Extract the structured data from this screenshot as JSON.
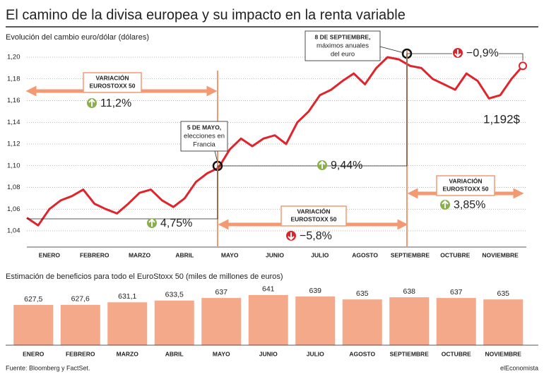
{
  "header": {
    "title": "El camino de la divisa europea y su impacto en la renta variable"
  },
  "chart_data": [
    {
      "type": "line",
      "subtitle": "Evolución del cambio euro/dólar (dólares)",
      "color": "#e0242c",
      "categories": [
        null,
        null,
        "ENERO",
        null,
        null,
        null,
        "FEBRERO",
        null,
        null,
        null,
        "MARZO",
        null,
        null,
        null,
        "ABRIL",
        null,
        null,
        null,
        "MAYO",
        null,
        null,
        null,
        "JUNIO",
        null,
        null,
        null,
        "JULIO",
        null,
        null,
        null,
        "AGOSTO",
        null,
        null,
        null,
        "SEPTIEMBRE",
        null,
        null,
        null,
        "OCTUBRE",
        null,
        null,
        null,
        "NOVIEMBRE",
        null,
        null
      ],
      "values": [
        1.052,
        1.045,
        1.06,
        1.068,
        1.072,
        1.078,
        1.065,
        1.06,
        1.056,
        1.065,
        1.075,
        1.078,
        1.068,
        1.062,
        1.07,
        1.085,
        1.093,
        1.098,
        1.115,
        1.125,
        1.118,
        1.125,
        1.128,
        1.12,
        1.14,
        1.15,
        1.165,
        1.17,
        1.178,
        1.185,
        1.175,
        1.19,
        1.2,
        1.198,
        1.192,
        1.19,
        1.18,
        1.175,
        1.17,
        1.185,
        1.178,
        1.162,
        1.165,
        1.18,
        1.192
      ],
      "ylim": [
        1.03,
        1.21
      ],
      "yticks": [
        {
          "value": 1.04,
          "label": "1,04"
        },
        {
          "value": 1.06,
          "label": "1,06"
        },
        {
          "value": 1.08,
          "label": "1,08"
        },
        {
          "value": 1.1,
          "label": "1,10"
        },
        {
          "value": 1.12,
          "label": "1,12"
        },
        {
          "value": 1.14,
          "label": "1,14"
        },
        {
          "value": 1.16,
          "label": "1,16"
        },
        {
          "value": 1.18,
          "label": "1,18"
        },
        {
          "value": 1.2,
          "label": "1,20"
        }
      ],
      "grid": true,
      "annotations": [
        {
          "lines": [
            "VARIACIÓN",
            "EUROSTOXX 50"
          ],
          "value": "11,2%"
        },
        {
          "lines": [
            "5 DE MAYO,",
            "elecciones en",
            "Francia"
          ]
        },
        {
          "lines": [
            "8 DE SEPTIEMBRE,",
            "máximos anuales",
            "del euro"
          ]
        },
        {
          "value": "4,75%"
        },
        {
          "value": "9,44%"
        },
        {
          "lines": [
            "VARIACIÓN",
            "EUROSTOXX 50"
          ],
          "value": "−5,8%"
        },
        {
          "lines": [
            "VARIACIÓN",
            "EUROSTOXX 50"
          ],
          "value": "3,85%"
        },
        {
          "value": "−0,9%"
        },
        {
          "value": "1,192$"
        }
      ]
    },
    {
      "type": "bar",
      "subtitle": "Estimación de beneficios para todo el EuroStoxx 50 (miles de millones de euros)",
      "color": "#f4a98a",
      "categories": [
        "ENERO",
        "FEBRERO",
        "MARZO",
        "ABRIL",
        "MAYO",
        "JUNIO",
        "JULIO",
        "AGOSTO",
        "SEPTIEMBRE",
        "OCTUBRE",
        "NOVIEMBRE"
      ],
      "values": [
        627.5,
        627.6,
        631.1,
        633.5,
        637,
        641,
        639,
        635,
        638,
        637,
        635
      ],
      "value_labels": [
        "627,5",
        "627,6",
        "631,1",
        "633,5",
        "637",
        "641",
        "639",
        "635",
        "638",
        "637",
        "635"
      ]
    }
  ],
  "footer": {
    "source": "Fuente: Bloomberg y FactSet.",
    "brand": "elEconomista"
  }
}
